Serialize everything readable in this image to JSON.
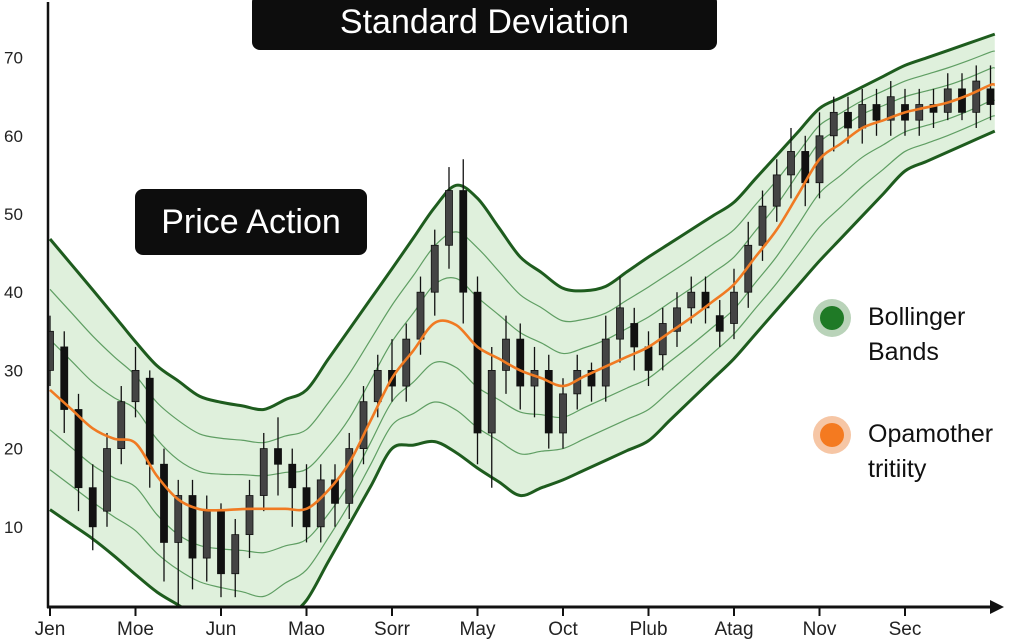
{
  "colors": {
    "band_fill": "#dff0dc",
    "band_edge": "#1e5c1e",
    "band_inner": "#5f9e63",
    "midline": "#f07a22",
    "candle": "#111111",
    "legend_green": "#1f7a26",
    "legend_orange": "#f47a20"
  },
  "chart_data": {
    "type": "candlestick",
    "title": "Standard Deviation",
    "annotation": "Price Action",
    "xlabel": "",
    "ylabel": "",
    "categories": [
      "Jen",
      "Moe",
      "Jun",
      "Mao",
      "Sorr",
      "May",
      "Oct",
      "Plub",
      "Atag",
      "Nov",
      "Sec"
    ],
    "yticks": [
      10,
      20,
      30,
      40,
      50,
      60,
      70
    ],
    "ylim": [
      0,
      78
    ],
    "grid": false,
    "legend": {
      "placement": "right",
      "items": [
        {
          "label_lines": [
            "Bollinger",
            "Bands"
          ],
          "color": "#1f7a26"
        },
        {
          "label_lines": [
            "Opamother",
            "tritiity"
          ],
          "color": "#f47a20"
        }
      ]
    },
    "middle_band": [
      [
        0,
        27.5
      ],
      [
        0.6,
        21.6
      ],
      [
        1,
        20.7
      ],
      [
        1.4,
        14
      ],
      [
        1.8,
        12
      ],
      [
        2.3,
        12.3
      ],
      [
        3,
        12.3
      ],
      [
        3.4,
        16
      ],
      [
        4,
        29
      ],
      [
        4.6,
        37.5
      ],
      [
        5,
        33
      ],
      [
        5.5,
        30
      ],
      [
        6,
        28
      ],
      [
        6.4,
        30
      ],
      [
        7,
        33
      ],
      [
        7.6,
        37.5
      ],
      [
        8,
        41
      ],
      [
        8.5,
        48
      ],
      [
        9,
        57
      ],
      [
        9.5,
        61
      ],
      [
        10,
        63
      ],
      [
        10.6,
        64.5
      ],
      [
        11,
        66.5
      ]
    ],
    "upper_band": [
      [
        0,
        46.8
      ],
      [
        0.6,
        39
      ],
      [
        1.2,
        31
      ],
      [
        1.8,
        26.3
      ],
      [
        2.5,
        25
      ],
      [
        3,
        27.5
      ],
      [
        4,
        43
      ],
      [
        4.7,
        54
      ],
      [
        5,
        52
      ],
      [
        5.5,
        44.5
      ],
      [
        6,
        40.5
      ],
      [
        6.4,
        40
      ],
      [
        7,
        44.5
      ],
      [
        8,
        51.5
      ],
      [
        9,
        63.5
      ],
      [
        10,
        69
      ],
      [
        11.05,
        73
      ]
    ],
    "lower_band": [
      [
        0,
        12.2
      ],
      [
        0.6,
        7.7
      ],
      [
        1.2,
        2
      ],
      [
        1.8,
        -2
      ],
      [
        2.5,
        -4.5
      ],
      [
        3,
        0.6
      ],
      [
        4,
        20
      ],
      [
        4.56,
        21
      ],
      [
        5,
        17.5
      ],
      [
        5.5,
        14
      ],
      [
        6,
        16
      ],
      [
        7,
        21
      ],
      [
        8,
        31.5
      ],
      [
        9,
        44
      ],
      [
        10,
        55.5
      ],
      [
        11.05,
        60.6
      ]
    ],
    "candles_ohlc": [
      [
        30,
        35,
        28,
        37
      ],
      [
        33,
        25,
        22,
        35
      ],
      [
        25,
        15,
        12,
        27
      ],
      [
        15,
        10,
        7,
        18
      ],
      [
        12,
        20,
        10,
        22
      ],
      [
        20,
        26,
        18,
        28
      ],
      [
        26,
        30,
        24,
        33
      ],
      [
        29,
        18,
        15,
        30
      ],
      [
        18,
        8,
        3,
        20
      ],
      [
        8,
        14,
        0,
        16
      ],
      [
        14,
        6,
        2,
        16
      ],
      [
        6,
        12,
        3,
        14
      ],
      [
        12,
        4,
        1,
        13
      ],
      [
        4,
        9,
        1,
        11
      ],
      [
        9,
        14,
        6,
        16
      ],
      [
        14,
        20,
        12,
        22
      ],
      [
        20,
        18,
        14,
        24
      ],
      [
        18,
        15,
        10,
        20
      ],
      [
        15,
        10,
        8,
        18
      ],
      [
        10,
        16,
        8,
        18
      ],
      [
        16,
        13,
        10,
        18
      ],
      [
        13,
        20,
        11,
        22
      ],
      [
        20,
        26,
        18,
        28
      ],
      [
        26,
        30,
        24,
        32
      ],
      [
        30,
        28,
        26,
        34
      ],
      [
        28,
        34,
        26,
        36
      ],
      [
        34,
        40,
        32,
        42
      ],
      [
        40,
        46,
        37,
        48
      ],
      [
        46,
        53,
        43,
        56
      ],
      [
        53,
        40,
        36,
        57
      ],
      [
        40,
        22,
        18,
        42
      ],
      [
        22,
        30,
        15,
        33
      ],
      [
        30,
        34,
        27,
        37
      ],
      [
        34,
        28,
        25,
        36
      ],
      [
        28,
        30,
        24,
        33
      ],
      [
        30,
        22,
        20,
        32
      ],
      [
        22,
        27,
        20,
        29
      ],
      [
        27,
        30,
        25,
        32
      ],
      [
        30,
        28,
        26,
        31
      ],
      [
        28,
        34,
        26,
        37
      ],
      [
        34,
        38,
        31,
        42
      ],
      [
        36,
        33,
        30,
        38
      ],
      [
        33,
        30,
        28,
        35
      ],
      [
        32,
        36,
        30,
        38
      ],
      [
        35,
        38,
        33,
        40
      ],
      [
        38,
        40,
        36,
        42
      ],
      [
        40,
        38,
        36,
        42
      ],
      [
        37,
        35,
        33,
        39
      ],
      [
        36,
        40,
        34,
        43
      ],
      [
        40,
        46,
        38,
        49
      ],
      [
        46,
        51,
        44,
        53
      ],
      [
        51,
        55,
        49,
        57
      ],
      [
        55,
        58,
        52,
        61
      ],
      [
        58,
        54,
        51,
        60
      ],
      [
        54,
        60,
        52,
        63
      ],
      [
        60,
        63,
        58,
        65
      ],
      [
        63,
        61,
        59,
        65
      ],
      [
        61,
        64,
        59,
        66
      ],
      [
        64,
        62,
        60,
        66
      ],
      [
        62,
        65,
        60,
        67
      ],
      [
        64,
        62,
        60,
        66
      ],
      [
        62,
        64,
        60,
        66
      ],
      [
        64,
        63,
        61,
        66
      ],
      [
        63,
        66,
        62,
        68
      ],
      [
        66,
        63,
        62,
        68
      ],
      [
        63,
        67,
        61,
        69
      ],
      [
        66,
        64,
        62,
        69
      ]
    ]
  }
}
